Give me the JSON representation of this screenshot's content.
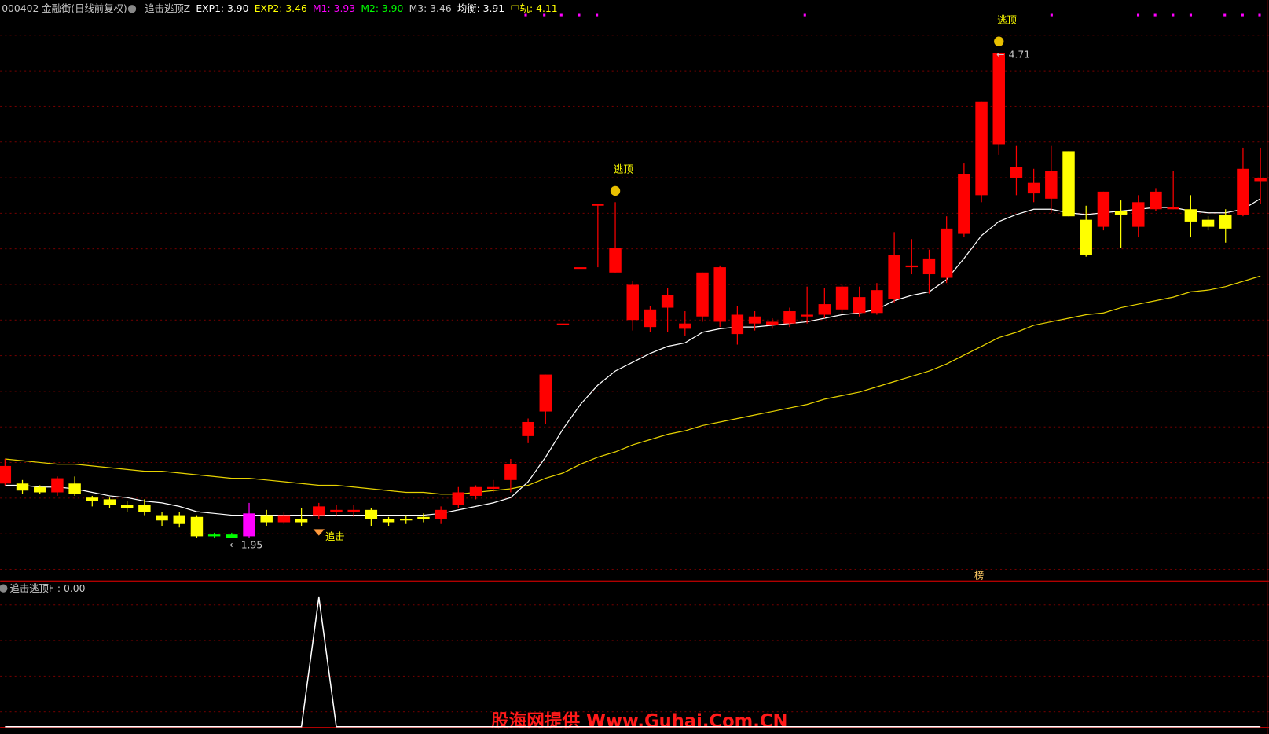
{
  "header": [
    {
      "text": "000402 金融街(日线前复权)",
      "color": "#c8c8c8"
    },
    {
      "text": "追击逃顶Z",
      "color": "#c8c8c8"
    },
    {
      "text": "EXP1: 3.90",
      "color": "#ffffff"
    },
    {
      "text": "EXP2: 3.46",
      "color": "#ffff00"
    },
    {
      "text": "M1: 3.93",
      "color": "#ff00ff"
    },
    {
      "text": "M2: 3.90",
      "color": "#00ff00"
    },
    {
      "text": "M3: 3.46",
      "color": "#c8c8c8"
    },
    {
      "text": "均衡: 3.91",
      "color": "#ffffff"
    },
    {
      "text": "中轨: 4.11",
      "color": "#ffff00"
    }
  ],
  "watermark": "股海网提供 Www.Guhai.Com.CN",
  "marker": "榜",
  "chart_data": [
    {
      "type": "candlestick",
      "ylim": [
        1.71,
        5.01
      ],
      "open": [
        2.26,
        2.26,
        2.24,
        2.21,
        2.26,
        2.18,
        2.17,
        2.14,
        2.14,
        2.08,
        2.08,
        2.07,
        1.97,
        1.97,
        1.96,
        2.08,
        2.04,
        2.06,
        2.08,
        2.1,
        2.1,
        2.11,
        2.06,
        2.06,
        2.07,
        2.06,
        2.14,
        2.19,
        2.23,
        2.28,
        2.53,
        2.67,
        3.16,
        3.49,
        3.84,
        3.46,
        3.19,
        3.15,
        3.26,
        3.14,
        3.21,
        3.18,
        3.11,
        3.17,
        3.16,
        3.17,
        3.21,
        3.22,
        3.25,
        3.23,
        3.23,
        3.31,
        3.49,
        3.45,
        3.43,
        3.68,
        3.9,
        4.19,
        4.0,
        3.91,
        3.88,
        4.15,
        3.76,
        3.72,
        3.81,
        3.72,
        3.82,
        3.82,
        3.82,
        3.76,
        3.79,
        3.79,
        3.98
      ],
      "close": [
        2.36,
        2.22,
        2.21,
        2.29,
        2.2,
        2.16,
        2.14,
        2.12,
        2.1,
        2.05,
        2.03,
        1.96,
        1.96,
        1.95,
        2.09,
        2.04,
        2.08,
        2.04,
        2.13,
        2.11,
        2.11,
        2.06,
        2.04,
        2.05,
        2.06,
        2.11,
        2.21,
        2.24,
        2.24,
        2.37,
        2.61,
        2.88,
        3.17,
        3.49,
        3.85,
        3.6,
        3.39,
        3.25,
        3.33,
        3.17,
        3.46,
        3.49,
        3.22,
        3.21,
        3.18,
        3.24,
        3.22,
        3.28,
        3.38,
        3.32,
        3.36,
        3.56,
        3.5,
        3.54,
        3.71,
        4.02,
        4.43,
        4.71,
        4.06,
        3.97,
        4.04,
        3.78,
        3.56,
        3.92,
        3.79,
        3.86,
        3.92,
        3.83,
        3.75,
        3.72,
        3.71,
        4.05,
        4.0
      ],
      "high": [
        2.4,
        2.28,
        2.25,
        2.3,
        2.3,
        2.19,
        2.18,
        2.16,
        2.17,
        2.1,
        2.1,
        2.08,
        1.98,
        1.98,
        2.15,
        2.11,
        2.1,
        2.12,
        2.15,
        2.14,
        2.14,
        2.12,
        2.07,
        2.08,
        2.09,
        2.13,
        2.24,
        2.25,
        2.28,
        2.4,
        2.63,
        2.88,
        3.17,
        3.49,
        3.85,
        3.86,
        3.41,
        3.27,
        3.37,
        3.24,
        3.46,
        3.5,
        3.27,
        3.24,
        3.2,
        3.26,
        3.38,
        3.37,
        3.39,
        3.38,
        3.4,
        3.69,
        3.65,
        3.59,
        3.78,
        4.08,
        4.43,
        4.71,
        4.18,
        4.05,
        4.18,
        4.15,
        3.84,
        3.92,
        3.87,
        3.9,
        3.94,
        4.04,
        3.9,
        3.78,
        3.82,
        4.17,
        4.17
      ],
      "low": [
        2.25,
        2.2,
        2.2,
        2.19,
        2.19,
        2.13,
        2.12,
        2.1,
        2.08,
        2.02,
        2.01,
        1.95,
        1.95,
        1.96,
        1.95,
        2.02,
        2.03,
        2.02,
        2.06,
        2.08,
        2.07,
        2.02,
        2.02,
        2.03,
        2.04,
        2.03,
        2.12,
        2.17,
        2.21,
        2.21,
        2.49,
        2.6,
        3.16,
        3.49,
        3.49,
        3.46,
        3.13,
        3.12,
        3.12,
        3.1,
        3.18,
        3.15,
        3.05,
        3.13,
        3.14,
        3.15,
        3.17,
        3.2,
        3.23,
        3.21,
        3.22,
        3.29,
        3.45,
        3.34,
        3.4,
        3.66,
        3.86,
        4.13,
        3.9,
        3.86,
        3.8,
        3.78,
        3.55,
        3.7,
        3.6,
        3.66,
        3.81,
        3.82,
        3.66,
        3.7,
        3.63,
        3.78,
        3.85
      ],
      "colors": [
        "#ff0000",
        "#ffff00",
        "#ffff00",
        "#ff0000",
        "#ffff00",
        "#ffff00",
        "#ffff00",
        "#ffff00",
        "#ffff00",
        "#ffff00",
        "#ffff00",
        "#ffff00",
        "#00ff00",
        "#00ff00",
        "#ff00ff",
        "#ffff00",
        "#ff0000",
        "#ffff00",
        "#ff0000",
        "#ff0000",
        "#ff0000",
        "#ffff00",
        "#ffff00",
        "#ffff00",
        "#ffff00",
        "#ff0000",
        "#ff0000",
        "#ff0000",
        "#ff0000",
        "#ff0000",
        "#ff0000",
        "#ff0000",
        "#ff0000",
        "#ff0000",
        "#ff0000",
        "#ff0000",
        "#ff0000",
        "#ff0000",
        "#ff0000",
        "#ff0000",
        "#ff0000",
        "#ff0000",
        "#ff0000",
        "#ff0000",
        "#ff0000",
        "#ff0000",
        "#ff0000",
        "#ff0000",
        "#ff0000",
        "#ff0000",
        "#ff0000",
        "#ff0000",
        "#ff0000",
        "#ff0000",
        "#ff0000",
        "#ff0000",
        "#ff0000",
        "#ff0000",
        "#ff0000",
        "#ff0000",
        "#ff0000",
        "#ffff00",
        "#ffff00",
        "#ff0000",
        "#ffff00",
        "#ff0000",
        "#ff0000",
        "#ff0000",
        "#ffff00",
        "#ffff00",
        "#ffff00",
        "#ff0000",
        "#ff0000"
      ],
      "series": [
        {
          "color": "#ffffff",
          "values": [
            2.25,
            2.25,
            2.24,
            2.24,
            2.23,
            2.21,
            2.19,
            2.18,
            2.16,
            2.15,
            2.13,
            2.1,
            2.09,
            2.08,
            2.08,
            2.08,
            2.08,
            2.08,
            2.08,
            2.08,
            2.08,
            2.08,
            2.08,
            2.08,
            2.08,
            2.09,
            2.11,
            2.13,
            2.15,
            2.18,
            2.27,
            2.41,
            2.57,
            2.71,
            2.82,
            2.9,
            2.95,
            3.0,
            3.04,
            3.06,
            3.12,
            3.14,
            3.15,
            3.15,
            3.16,
            3.17,
            3.18,
            3.2,
            3.22,
            3.23,
            3.25,
            3.3,
            3.33,
            3.35,
            3.42,
            3.54,
            3.67,
            3.75,
            3.79,
            3.82,
            3.82,
            3.8,
            3.79,
            3.8,
            3.81,
            3.82,
            3.83,
            3.83,
            3.81,
            3.8,
            3.8,
            3.82,
            3.88
          ]
        },
        {
          "color": "#e6d200",
          "values": [
            2.4,
            2.39,
            2.38,
            2.37,
            2.37,
            2.36,
            2.35,
            2.34,
            2.33,
            2.33,
            2.32,
            2.31,
            2.3,
            2.29,
            2.29,
            2.28,
            2.27,
            2.26,
            2.25,
            2.25,
            2.24,
            2.23,
            2.22,
            2.21,
            2.21,
            2.2,
            2.2,
            2.21,
            2.22,
            2.23,
            2.25,
            2.29,
            2.32,
            2.37,
            2.41,
            2.44,
            2.48,
            2.51,
            2.54,
            2.56,
            2.59,
            2.61,
            2.63,
            2.65,
            2.67,
            2.69,
            2.71,
            2.74,
            2.76,
            2.78,
            2.81,
            2.84,
            2.87,
            2.9,
            2.94,
            2.99,
            3.04,
            3.09,
            3.12,
            3.16,
            3.18,
            3.2,
            3.22,
            3.23,
            3.26,
            3.28,
            3.3,
            3.32,
            3.35,
            3.36,
            3.38,
            3.41,
            3.44
          ]
        }
      ],
      "annotations": [
        {
          "text": "追击",
          "index": 18,
          "color": "#ffff00"
        },
        {
          "text": "逃顶",
          "index": 35,
          "color": "#ffff00"
        },
        {
          "text": "逃顶",
          "index": 57,
          "color": "#ffff00"
        }
      ],
      "price_labels": [
        {
          "value": 1.95,
          "index": 14
        },
        {
          "value": 4.71,
          "index": 57
        }
      ]
    },
    {
      "type": "line",
      "title": "追击逃顶F : 0.00",
      "ylim": [
        0,
        1
      ],
      "color": "#ffffff",
      "values": [
        0,
        0,
        0,
        0,
        0,
        0,
        0,
        0,
        0,
        0,
        0,
        0,
        0,
        0,
        0,
        0,
        0,
        0,
        1,
        0,
        0,
        0,
        0,
        0,
        0,
        0,
        0,
        0,
        0,
        0,
        0,
        0,
        0,
        0,
        0,
        0,
        0,
        0,
        0,
        0,
        0,
        0,
        0,
        0,
        0,
        0,
        0,
        0,
        0,
        0,
        0,
        0,
        0,
        0,
        0,
        0,
        0,
        0,
        0,
        0,
        0,
        0,
        0,
        0,
        0,
        0,
        0,
        0,
        0,
        0,
        0,
        0,
        0
      ]
    }
  ]
}
